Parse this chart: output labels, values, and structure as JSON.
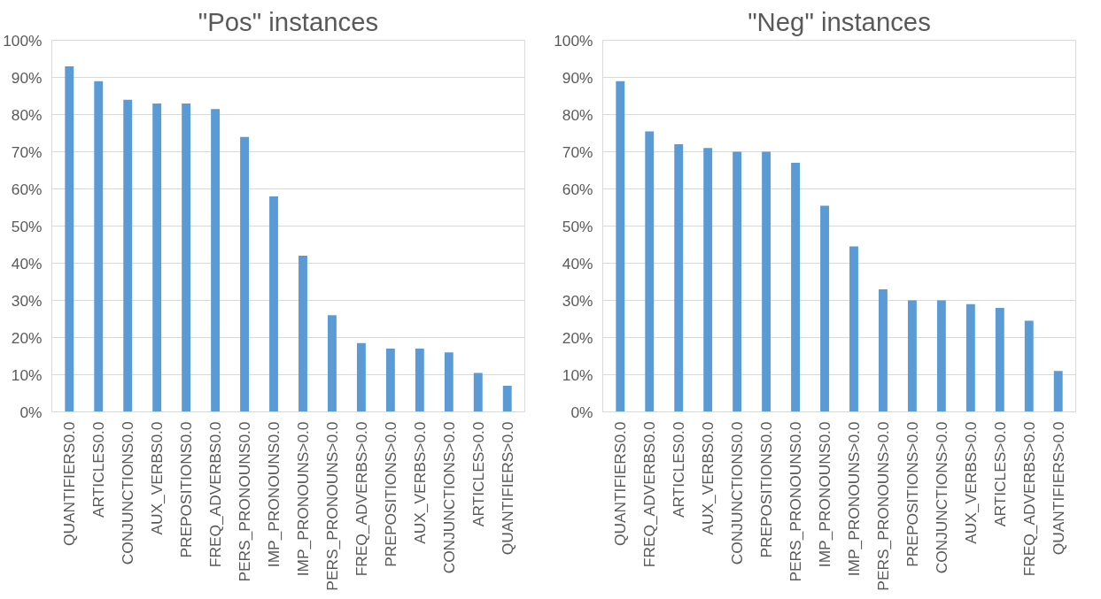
{
  "chart_data": [
    {
      "type": "bar",
      "title": "\"Pos\" instances",
      "categories": [
        "QUANTIFIERS0.0",
        "ARTICLES0.0",
        "CONJUNCTIONS0.0",
        "AUX_VERBS0.0",
        "PREPOSITIONS0.0",
        "FREQ_ADVERBS0.0",
        "PERS_PRONOUNS0.0",
        "IMP_PRONOUNS0.0",
        "IMP_PRONOUNS>0.0",
        "PERS_PRONOUNS>0.0",
        "FREQ_ADVERBS>0.0",
        "PREPOSITIONS>0.0",
        "AUX_VERBS>0.0",
        "CONJUNCTIONS>0.0",
        "ARTICLES>0.0",
        "QUANTIFIERS>0.0"
      ],
      "values": [
        93,
        89,
        84,
        83,
        83,
        81.5,
        74,
        58,
        42,
        26,
        18.5,
        17,
        17,
        16,
        10.5,
        7
      ],
      "color": "#5b9bd5",
      "ylim": [
        0,
        100
      ],
      "yticks": [
        {
          "value": 0,
          "label": "0%"
        },
        {
          "value": 10,
          "label": "10%"
        },
        {
          "value": 20,
          "label": "20%"
        },
        {
          "value": 30,
          "label": "30%"
        },
        {
          "value": 40,
          "label": "40%"
        },
        {
          "value": 50,
          "label": "50%"
        },
        {
          "value": 60,
          "label": "60%"
        },
        {
          "value": 70,
          "label": "70%"
        },
        {
          "value": 80,
          "label": "80%"
        },
        {
          "value": 90,
          "label": "90%"
        },
        {
          "value": 100,
          "label": "100%"
        }
      ],
      "grid": "y"
    },
    {
      "type": "bar",
      "title": "\"Neg\" instances",
      "categories": [
        "QUANTIFIERS0.0",
        "FREQ_ADVERBS0.0",
        "ARTICLES0.0",
        "AUX_VERBS0.0",
        "CONJUNCTIONS0.0",
        "PREPOSITIONS0.0",
        "PERS_PRONOUNS0.0",
        "IMP_PRONOUNS0.0",
        "IMP_PRONOUNS>0.0",
        "PERS_PRONOUNS>0.0",
        "PREPOSITIONS>0.0",
        "CONJUNCTIONS>0.0",
        "AUX_VERBS>0.0",
        "ARTICLES>0.0",
        "FREQ_ADVERBS>0.0",
        "QUANTIFIERS>0.0"
      ],
      "values": [
        89,
        75.5,
        72,
        71,
        70,
        70,
        67,
        55.5,
        44.5,
        33,
        30,
        30,
        29,
        28,
        24.5,
        11
      ],
      "color": "#5b9bd5",
      "ylim": [
        0,
        100
      ],
      "yticks": [
        {
          "value": 0,
          "label": "0%"
        },
        {
          "value": 10,
          "label": "10%"
        },
        {
          "value": 20,
          "label": "20%"
        },
        {
          "value": 30,
          "label": "30%"
        },
        {
          "value": 40,
          "label": "40%"
        },
        {
          "value": 50,
          "label": "50%"
        },
        {
          "value": 60,
          "label": "60%"
        },
        {
          "value": 70,
          "label": "70%"
        },
        {
          "value": 80,
          "label": "80%"
        },
        {
          "value": 90,
          "label": "90%"
        },
        {
          "value": 100,
          "label": "100%"
        }
      ],
      "grid": "y"
    }
  ]
}
